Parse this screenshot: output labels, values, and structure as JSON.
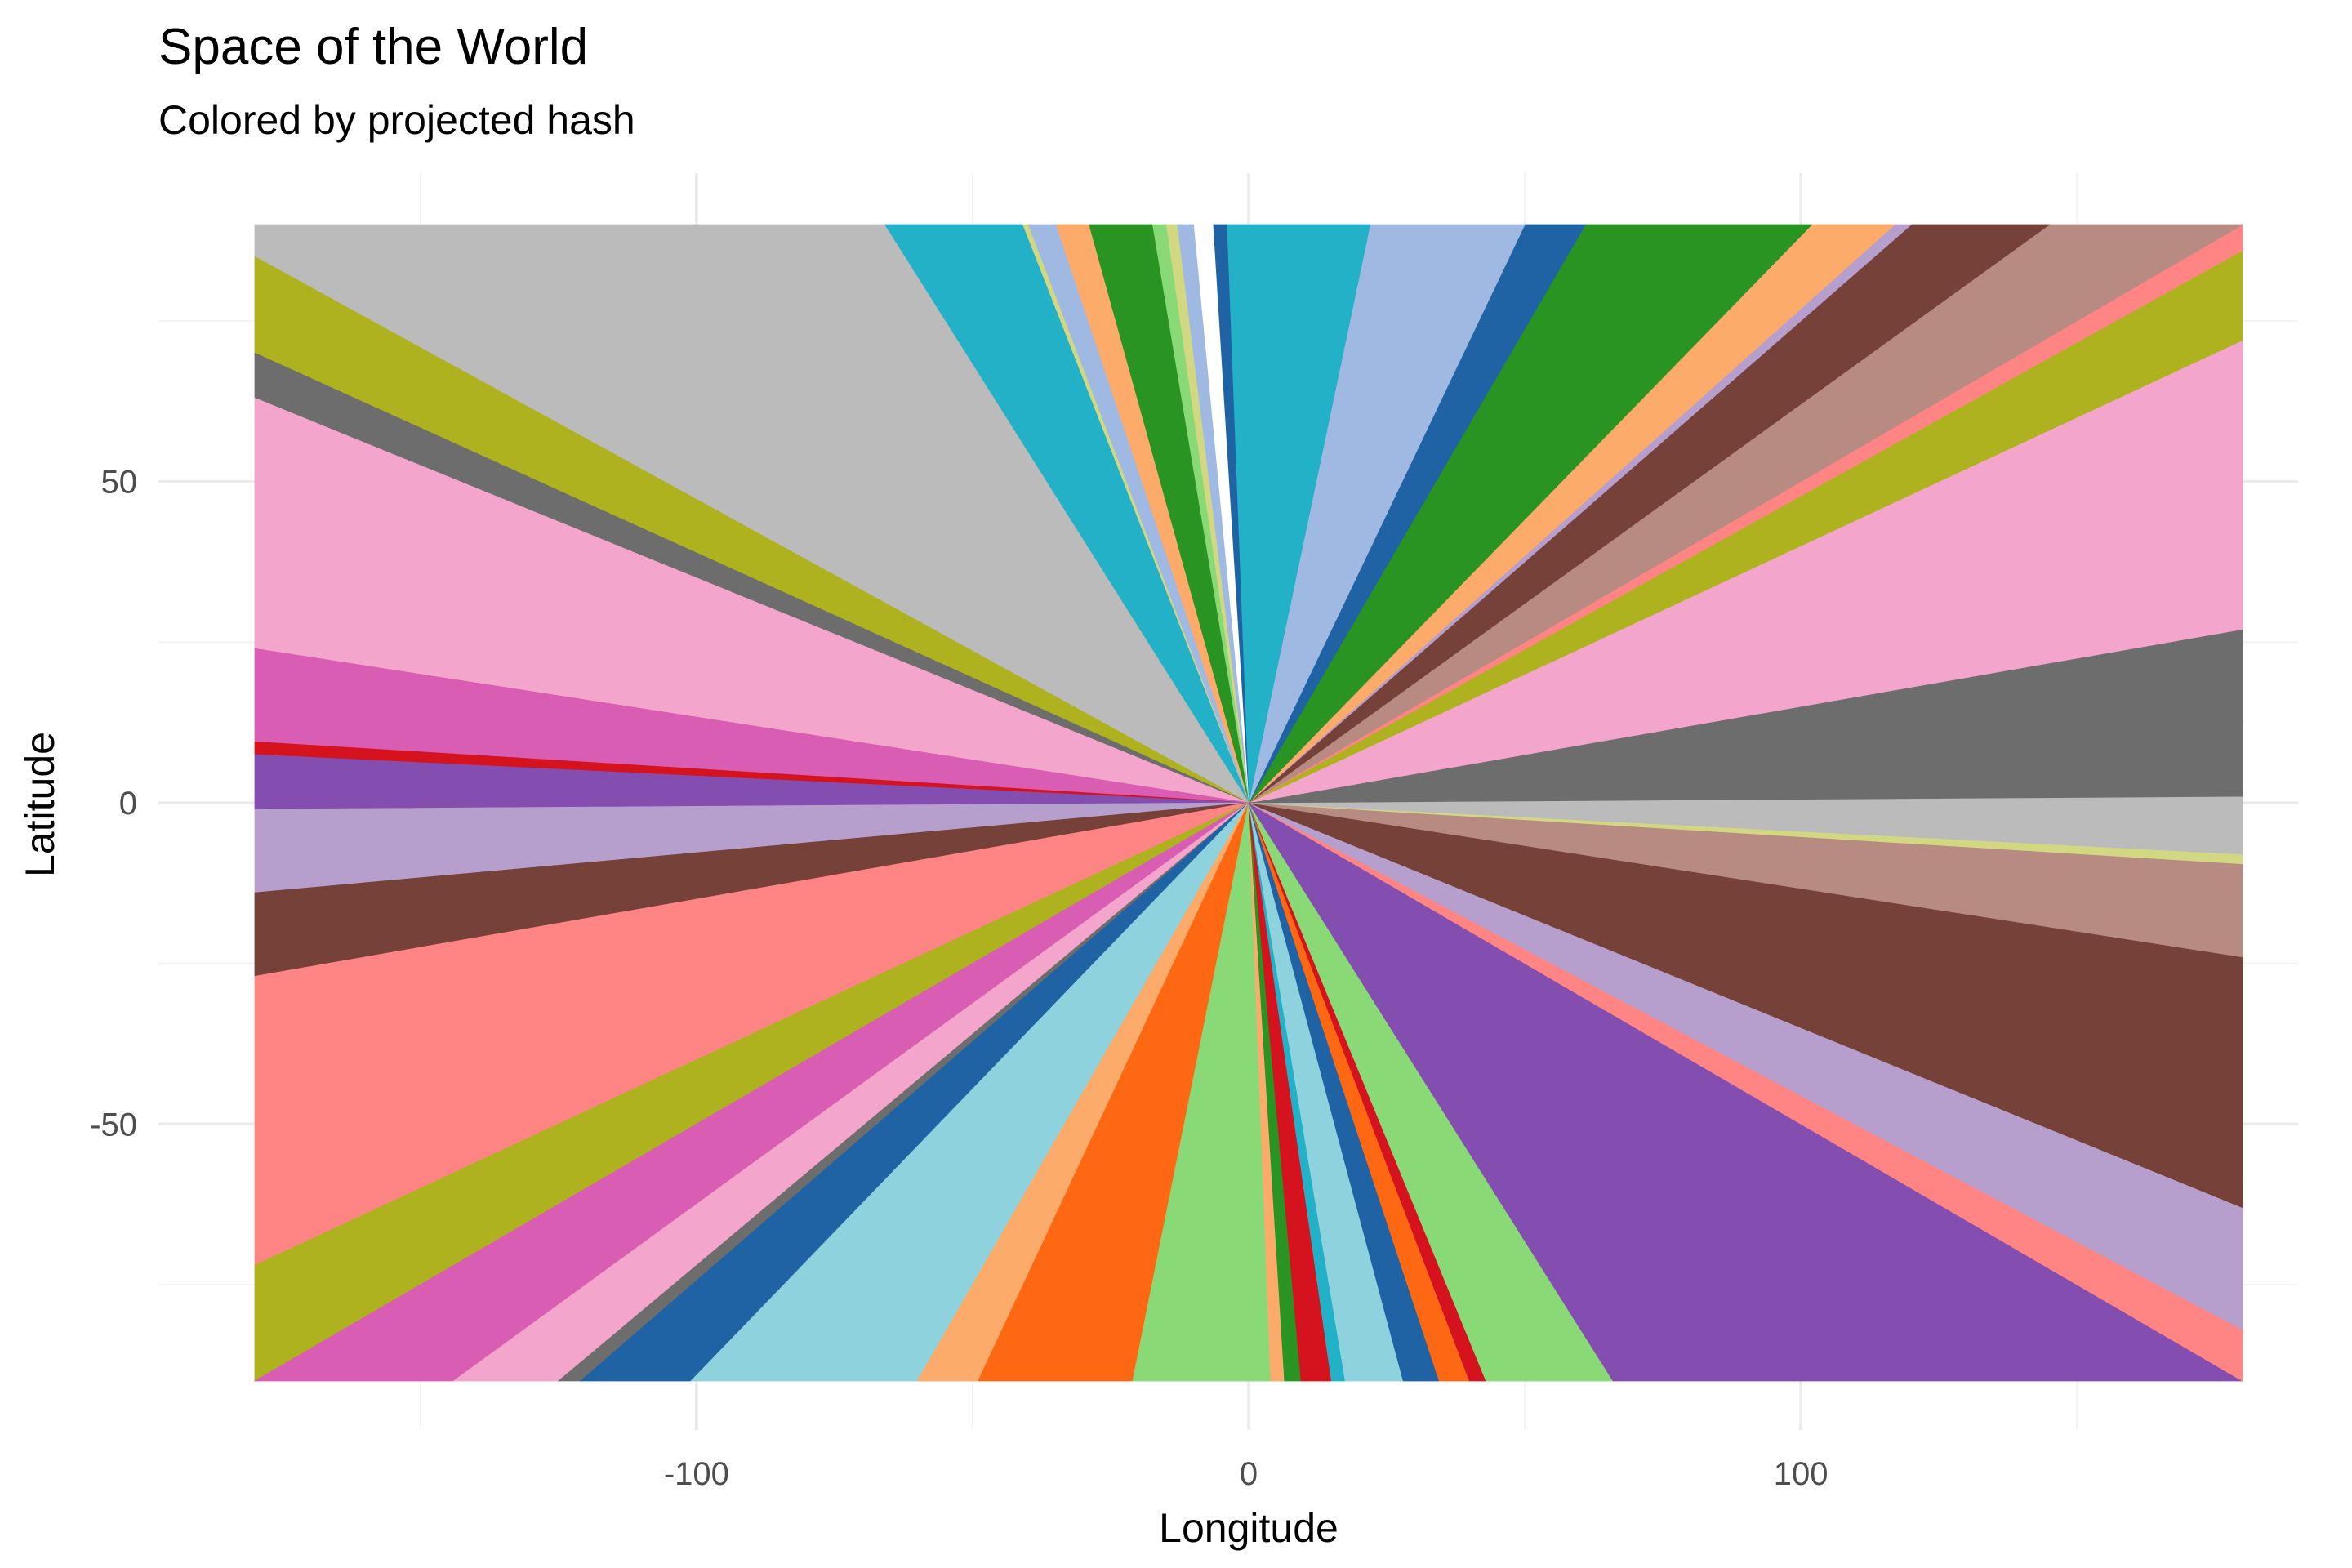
{
  "chart_data": {
    "type": "heatmap",
    "title": "Space of the World",
    "subtitle": "Colored by projected hash",
    "xlabel": "Longitude",
    "ylabel": "Latitude",
    "xlim": [
      -180,
      180
    ],
    "ylim": [
      -90,
      90
    ],
    "x_ticks": [
      -100,
      0,
      100
    ],
    "y_ticks": [
      50,
      0,
      -50
    ],
    "x_tick_labels": [
      "-100",
      "0",
      "100"
    ],
    "y_tick_labels": [
      "50",
      "0",
      "-50"
    ],
    "grid": true,
    "legend": "none",
    "center": [
      0,
      0
    ],
    "note_rays": "Color regions are angular sectors radiating from (0,0); each ray is listed by the longitude/latitude of the point where it meets the map border.",
    "rays": [
      {
        "end": [
          180,
          13
        ],
        "color": "#6d6d6d"
      },
      {
        "end": [
          180,
          27
        ],
        "color": "#f4a5cb"
      },
      {
        "end": [
          180,
          72
        ],
        "color": "#aeb21e"
      },
      {
        "end": [
          180,
          86
        ],
        "color": "#ff8584"
      },
      {
        "end": [
          180,
          90
        ],
        "color": "#b78a82"
      },
      {
        "end": [
          145,
          90
        ],
        "color": "#764138"
      },
      {
        "end": [
          120,
          90
        ],
        "color": "#b79fcd"
      },
      {
        "end": [
          117,
          90
        ],
        "color": "#fdab6a"
      },
      {
        "end": [
          102,
          90
        ],
        "color": "#299422"
      },
      {
        "end": [
          61,
          90
        ],
        "color": "#1f63a5"
      },
      {
        "end": [
          50,
          90
        ],
        "color": "#a0b9e2"
      },
      {
        "end": [
          22,
          90
        ],
        "color": "#22b1c6"
      },
      {
        "end": [
          -4,
          90
        ],
        "color": "#1f63a5"
      },
      {
        "end": [
          -6.5,
          90
        ],
        "color": "#ffffff"
      },
      {
        "end": [
          -10,
          90
        ],
        "color": "#a0b9e2"
      },
      {
        "end": [
          -13,
          90
        ],
        "color": "#d2d882"
      },
      {
        "end": [
          -15,
          90
        ],
        "color": "#8ad977"
      },
      {
        "end": [
          -17.5,
          90
        ],
        "color": "#299422"
      },
      {
        "end": [
          -29,
          90
        ],
        "color": "#fdab6a"
      },
      {
        "end": [
          -35,
          90
        ],
        "color": "#a0b9e2"
      },
      {
        "end": [
          -40,
          90
        ],
        "color": "#d2d882"
      },
      {
        "end": [
          -41,
          90
        ],
        "color": "#22b1c6"
      },
      {
        "end": [
          -66,
          90
        ],
        "color": "#bbbbbb"
      },
      {
        "end": [
          -180,
          85
        ],
        "color": "#aeb21e"
      },
      {
        "end": [
          -180,
          70
        ],
        "color": "#6d6d6d"
      },
      {
        "end": [
          -180,
          63
        ],
        "color": "#f4a5cb"
      },
      {
        "end": [
          -180,
          24
        ],
        "color": "#d95db3"
      },
      {
        "end": [
          -180,
          9.5
        ],
        "color": "#d4131f"
      },
      {
        "end": [
          -180,
          7.5
        ],
        "color": "#844eb0"
      },
      {
        "end": [
          -180,
          -1
        ],
        "color": "#b79fcd"
      },
      {
        "end": [
          -180,
          -14
        ],
        "color": "#764138"
      },
      {
        "end": [
          -180,
          -27
        ],
        "color": "#ff8584"
      },
      {
        "end": [
          -180,
          -72
        ],
        "color": "#aeb21e"
      },
      {
        "end": [
          -180,
          -90
        ],
        "color": "#d95db3"
      },
      {
        "end": [
          -144,
          -90
        ],
        "color": "#f4a5cb"
      },
      {
        "end": [
          -125,
          -90
        ],
        "color": "#6d6d6d"
      },
      {
        "end": [
          -121,
          -90
        ],
        "color": "#1f63a5"
      },
      {
        "end": [
          -101,
          -90
        ],
        "color": "#8ed2de"
      },
      {
        "end": [
          -60,
          -90
        ],
        "color": "#fdab6a"
      },
      {
        "end": [
          -49,
          -90
        ],
        "color": "#fe6813"
      },
      {
        "end": [
          -21,
          -90
        ],
        "color": "#8ad977"
      },
      {
        "end": [
          4,
          -90
        ],
        "color": "#fdab6a"
      },
      {
        "end": [
          6.5,
          -90
        ],
        "color": "#299422"
      },
      {
        "end": [
          9.5,
          -90
        ],
        "color": "#d4131f"
      },
      {
        "end": [
          15,
          -90
        ],
        "color": "#22b1c6"
      },
      {
        "end": [
          17.5,
          -90
        ],
        "color": "#8ed2de"
      },
      {
        "end": [
          28,
          -90
        ],
        "color": "#1f63a5"
      },
      {
        "end": [
          34.5,
          -90
        ],
        "color": "#fe6813"
      },
      {
        "end": [
          40,
          -90
        ],
        "color": "#d4131f"
      },
      {
        "end": [
          43,
          -90
        ],
        "color": "#8ad977"
      },
      {
        "end": [
          66,
          -90
        ],
        "color": "#844eb0"
      },
      {
        "end": [
          180,
          -90
        ],
        "color": "#ff8584"
      },
      {
        "end": [
          180,
          -82
        ],
        "color": "#b79fcd"
      },
      {
        "end": [
          180,
          -63
        ],
        "color": "#764138"
      },
      {
        "end": [
          180,
          -24
        ],
        "color": "#b78a82"
      },
      {
        "end": [
          180,
          -9.5
        ],
        "color": "#d2d882"
      },
      {
        "end": [
          180,
          -8
        ],
        "color": "#bbbbbb"
      },
      {
        "end": [
          180,
          1
        ],
        "color": "#6d6d6d"
      }
    ]
  }
}
